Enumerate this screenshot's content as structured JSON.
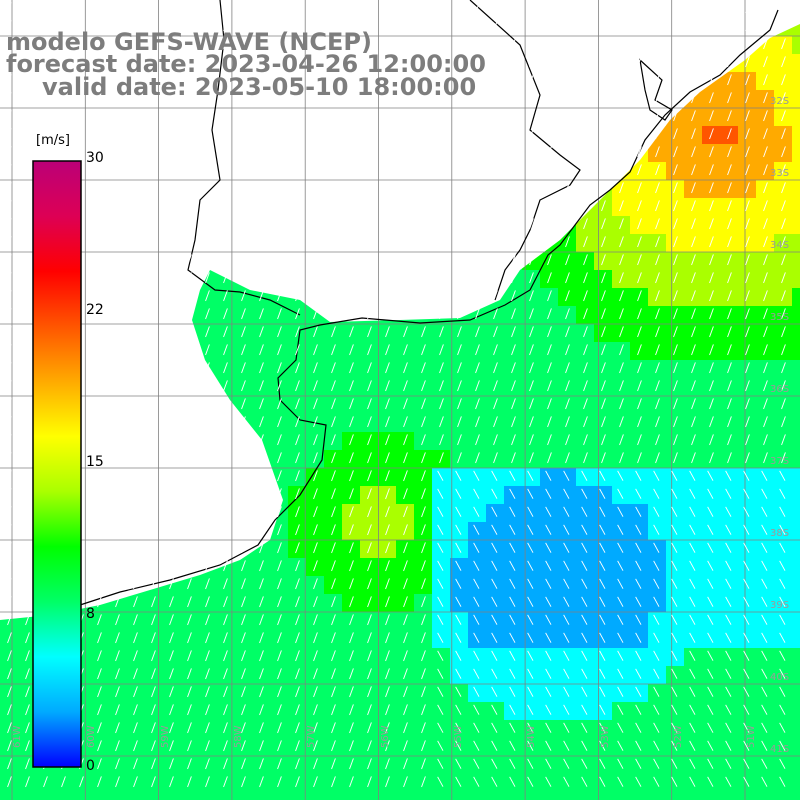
{
  "title": {
    "model": "modelo GEFS-WAVE (NCEP)",
    "forecast": "forecast date: 2023-04-26 12:00:00",
    "valid": "valid date: 2023-05-10 18:00:00"
  },
  "colorbar": {
    "unit": "[m/s]",
    "min": 0,
    "max": 30,
    "ticks": [
      "30",
      "22",
      "15",
      "8",
      "0"
    ],
    "tick_values": [
      30,
      22,
      15,
      8,
      0
    ],
    "gradient": [
      "#0000ff",
      "#00aaff",
      "#00ffff",
      "#00ff66",
      "#00ff00",
      "#aaff00",
      "#ffff00",
      "#ffaa00",
      "#ff5500",
      "#ff0000",
      "#dd0055",
      "#bb0077"
    ]
  },
  "map": {
    "land_color": "#ffffff",
    "grid_color": "#808080",
    "coast_color": "#000000",
    "arrow_color": "#ffffff",
    "lat_labels": [
      "32S",
      "33S",
      "34S",
      "35S",
      "36S",
      "37S",
      "38S",
      "39S",
      "40S",
      "41S"
    ],
    "lon_labels": [
      "61W",
      "60W",
      "59W",
      "58W",
      "57W",
      "56W",
      "55W",
      "54W",
      "53W",
      "52W",
      "51W"
    ]
  }
}
